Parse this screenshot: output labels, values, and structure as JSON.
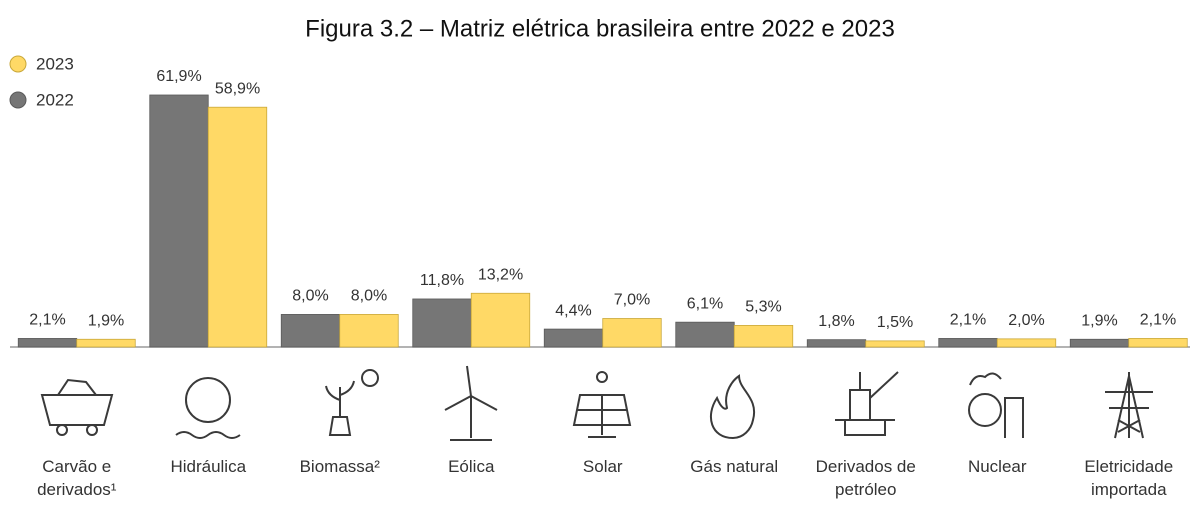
{
  "chart_data": {
    "type": "bar",
    "title": "Figura 3.2 – Matriz elétrica brasileira entre 2022 e 2023",
    "categories": [
      "Carvão e derivados¹",
      "Hidráulica",
      "Biomassa²",
      "Eólica",
      "Solar",
      "Gás natural",
      "Derivados de petróleo",
      "Nuclear",
      "Eletricidade importada"
    ],
    "series": [
      {
        "name": "2022",
        "color": "#767676",
        "values": [
          2.1,
          61.9,
          8.0,
          11.8,
          4.4,
          6.1,
          1.8,
          2.1,
          1.9
        ],
        "value_labels": [
          "2,1%",
          "61,9%",
          "8,0%",
          "11,8%",
          "4,4%",
          "6,1%",
          "1,8%",
          "2,1%",
          "1,9%"
        ]
      },
      {
        "name": "2023",
        "color": "#ffd966",
        "values": [
          1.9,
          58.9,
          8.0,
          13.2,
          7.0,
          5.3,
          1.5,
          2.0,
          2.1
        ],
        "value_labels": [
          "1,9%",
          "58,9%",
          "8,0%",
          "13,2%",
          "7,0%",
          "5,3%",
          "1,5%",
          "2,0%",
          "2,1%"
        ]
      }
    ],
    "legend": "top-left"
  }
}
